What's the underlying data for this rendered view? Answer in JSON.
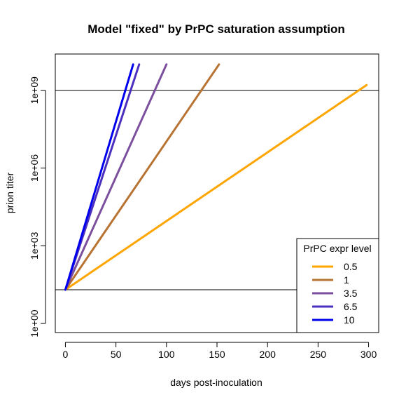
{
  "chart_data": {
    "type": "line",
    "title": "Model \"fixed\" by PrPC saturation assumption",
    "xlabel": "days post-inoculation",
    "ylabel": "prion titer",
    "xlim": [
      -10,
      310
    ],
    "log10_ylim": [
      -0.35,
      10.4
    ],
    "scale": "log10 y-axis",
    "x_ticks": [
      0,
      50,
      100,
      150,
      200,
      250,
      300
    ],
    "y_ticks": [
      {
        "value": 1,
        "label": "1e+00"
      },
      {
        "value": 1000,
        "label": "1e+03"
      },
      {
        "value": 1000000,
        "label": "1e+06"
      },
      {
        "value": 1000000000,
        "label": "1e+09"
      }
    ],
    "hlines": [
      {
        "value": 1000000000,
        "color": "#000000"
      },
      {
        "value": 20,
        "color": "#000000"
      }
    ],
    "grid": false,
    "legend": {
      "title": "PrPC expr level",
      "placement": "bottom-right"
    },
    "series": [
      {
        "name": "0.5",
        "color": "#FFA500",
        "x": [
          0,
          298
        ],
        "y": [
          20,
          1600000000
        ]
      },
      {
        "name": "1",
        "color": "#B87333",
        "x": [
          0,
          152
        ],
        "y": [
          20,
          10000000000
        ]
      },
      {
        "name": "3.5",
        "color": "#7B4F9E",
        "x": [
          0,
          100
        ],
        "y": [
          20,
          10000000000
        ]
      },
      {
        "name": "6.5",
        "color": "#4B2FBF",
        "x": [
          0,
          73
        ],
        "y": [
          20,
          10000000000
        ]
      },
      {
        "name": "10",
        "color": "#0000EE",
        "x": [
          0,
          67
        ],
        "y": [
          20,
          10000000000
        ]
      }
    ]
  }
}
